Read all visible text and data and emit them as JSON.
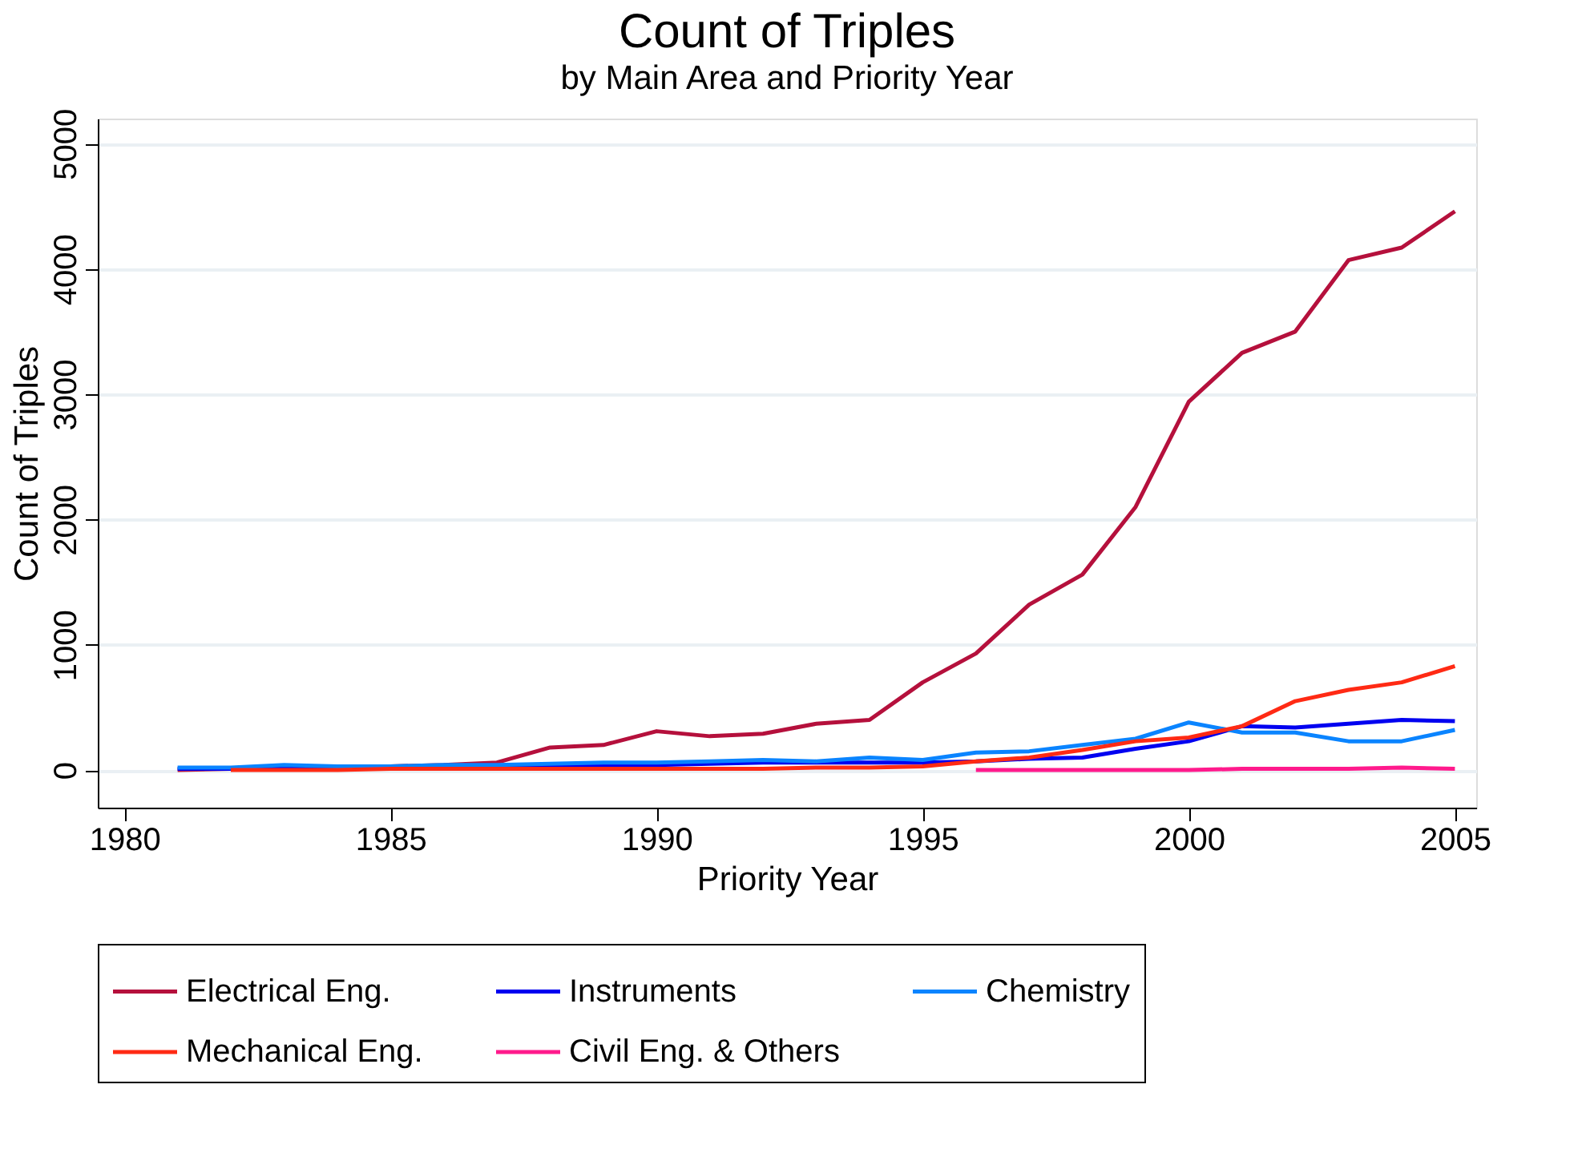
{
  "chart_data": {
    "type": "line",
    "title": "Count of Triples",
    "subtitle": "by Main Area and Priority Year",
    "xlabel": "Priority Year",
    "ylabel": "Count of Triples",
    "x": [
      1981,
      1982,
      1983,
      1984,
      1985,
      1986,
      1987,
      1988,
      1989,
      1990,
      1991,
      1992,
      1993,
      1994,
      1995,
      1996,
      1997,
      1998,
      1999,
      2000,
      2001,
      2002,
      2003,
      2004,
      2005
    ],
    "series": [
      {
        "name": "Electrical Eng.",
        "color": "#b5103c",
        "values": [
          0,
          10,
          20,
          20,
          30,
          40,
          60,
          180,
          200,
          310,
          270,
          290,
          370,
          400,
          700,
          930,
          1320,
          1560,
          2100,
          2940,
          3330,
          3500,
          4070,
          4170,
          4460
        ]
      },
      {
        "name": "Instruments",
        "color": "#0000f0",
        "values": [
          10,
          10,
          10,
          10,
          20,
          20,
          30,
          40,
          40,
          40,
          50,
          60,
          60,
          60,
          60,
          70,
          90,
          100,
          170,
          230,
          350,
          340,
          370,
          400,
          390
        ]
      },
      {
        "name": "Chemistry",
        "color": "#0a84ff",
        "values": [
          20,
          20,
          40,
          30,
          30,
          40,
          40,
          50,
          60,
          60,
          70,
          80,
          70,
          100,
          80,
          140,
          150,
          200,
          250,
          380,
          300,
          300,
          230,
          230,
          320
        ]
      },
      {
        "name": "Mechanical Eng.",
        "color": "#ff2a14",
        "values": [
          null,
          0,
          0,
          0,
          10,
          10,
          10,
          10,
          10,
          10,
          10,
          10,
          20,
          20,
          30,
          70,
          100,
          160,
          230,
          260,
          350,
          550,
          640,
          700,
          830
        ]
      },
      {
        "name": "Civil Eng. & Others",
        "color": "#ff1a8c",
        "values": [
          null,
          null,
          null,
          null,
          null,
          null,
          null,
          null,
          null,
          null,
          null,
          null,
          null,
          null,
          null,
          0,
          0,
          0,
          0,
          0,
          10,
          10,
          10,
          20,
          10
        ]
      }
    ],
    "xlim": [
      1979.5,
      2005.4
    ],
    "ylim": [
      -300,
      5200
    ],
    "xticks": [
      1980,
      1985,
      1990,
      1995,
      2000,
      2005
    ],
    "yticks": [
      0,
      1000,
      2000,
      3000,
      4000,
      5000
    ],
    "grid": "y",
    "legend": "bottom"
  }
}
